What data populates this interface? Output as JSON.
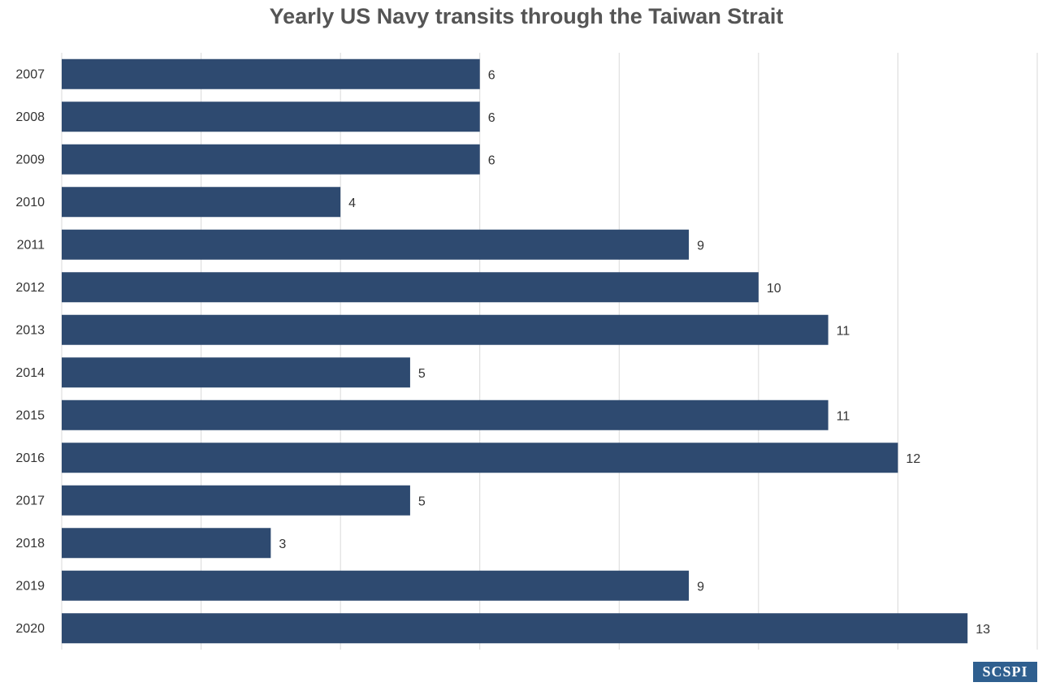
{
  "chart_data": {
    "type": "bar",
    "orientation": "horizontal",
    "title": "Yearly US Navy transits through the Taiwan Strait",
    "categories": [
      "2007",
      "2008",
      "2009",
      "2010",
      "2011",
      "2012",
      "2013",
      "2014",
      "2015",
      "2016",
      "2017",
      "2018",
      "2019",
      "2020"
    ],
    "values": [
      6,
      6,
      6,
      4,
      9,
      10,
      11,
      5,
      11,
      12,
      5,
      3,
      9,
      13
    ],
    "color": "#2e4a70",
    "xlim": [
      0,
      14
    ],
    "xticks": [
      0,
      2,
      4,
      6,
      8,
      10,
      12,
      14
    ],
    "grid": true
  },
  "logo": "SCSPI"
}
